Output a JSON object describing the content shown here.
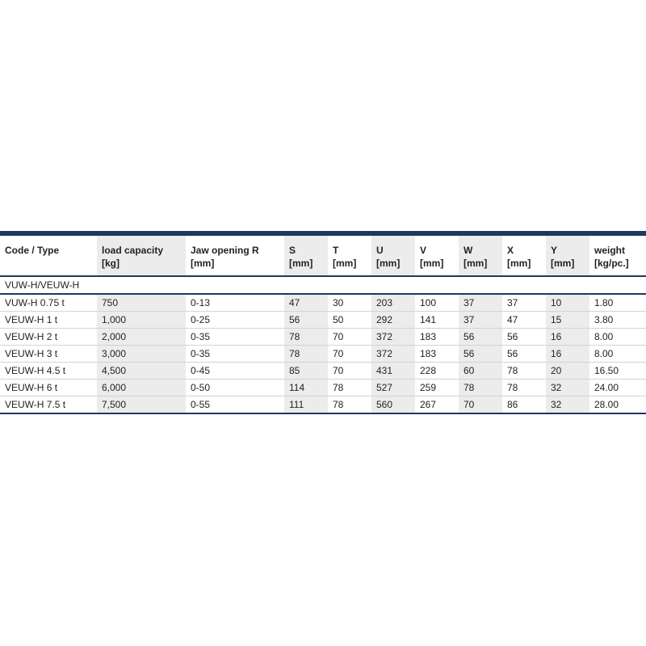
{
  "columns": [
    {
      "name": "Code / Type",
      "unit": ""
    },
    {
      "name": "load capacity",
      "unit": "[kg]"
    },
    {
      "name": "Jaw opening R",
      "unit": "[mm]"
    },
    {
      "name": "S",
      "unit": "[mm]"
    },
    {
      "name": "T",
      "unit": "[mm]"
    },
    {
      "name": "U",
      "unit": "[mm]"
    },
    {
      "name": "V",
      "unit": "[mm]"
    },
    {
      "name": "W",
      "unit": "[mm]"
    },
    {
      "name": "X",
      "unit": "[mm]"
    },
    {
      "name": "Y",
      "unit": "[mm]"
    },
    {
      "name": "weight",
      "unit": "[kg/pc.]"
    }
  ],
  "group_label": "VUW-H/VEUW-H",
  "rows": [
    [
      "VUW-H 0.75 t",
      "750",
      "0-13",
      "47",
      "30",
      "203",
      "100",
      "37",
      "37",
      "10",
      "1.80"
    ],
    [
      "VEUW-H 1 t",
      "1,000",
      "0-25",
      "56",
      "50",
      "292",
      "141",
      "37",
      "47",
      "15",
      "3.80"
    ],
    [
      "VEUW-H 2 t",
      "2,000",
      "0-35",
      "78",
      "70",
      "372",
      "183",
      "56",
      "56",
      "16",
      "8.00"
    ],
    [
      "VEUW-H 3 t",
      "3,000",
      "0-35",
      "78",
      "70",
      "372",
      "183",
      "56",
      "56",
      "16",
      "8.00"
    ],
    [
      "VEUW-H 4.5 t",
      "4,500",
      "0-45",
      "85",
      "70",
      "431",
      "228",
      "60",
      "78",
      "20",
      "16.50"
    ],
    [
      "VEUW-H 6 t",
      "6,000",
      "0-50",
      "114",
      "78",
      "527",
      "259",
      "78",
      "78",
      "32",
      "24.00"
    ],
    [
      "VEUW-H 7.5 t",
      "7,500",
      "0-55",
      "111",
      "78",
      "560",
      "267",
      "70",
      "86",
      "32",
      "28.00"
    ]
  ],
  "colors": {
    "accent": "#1c3a5e",
    "shade": "#ececec"
  }
}
